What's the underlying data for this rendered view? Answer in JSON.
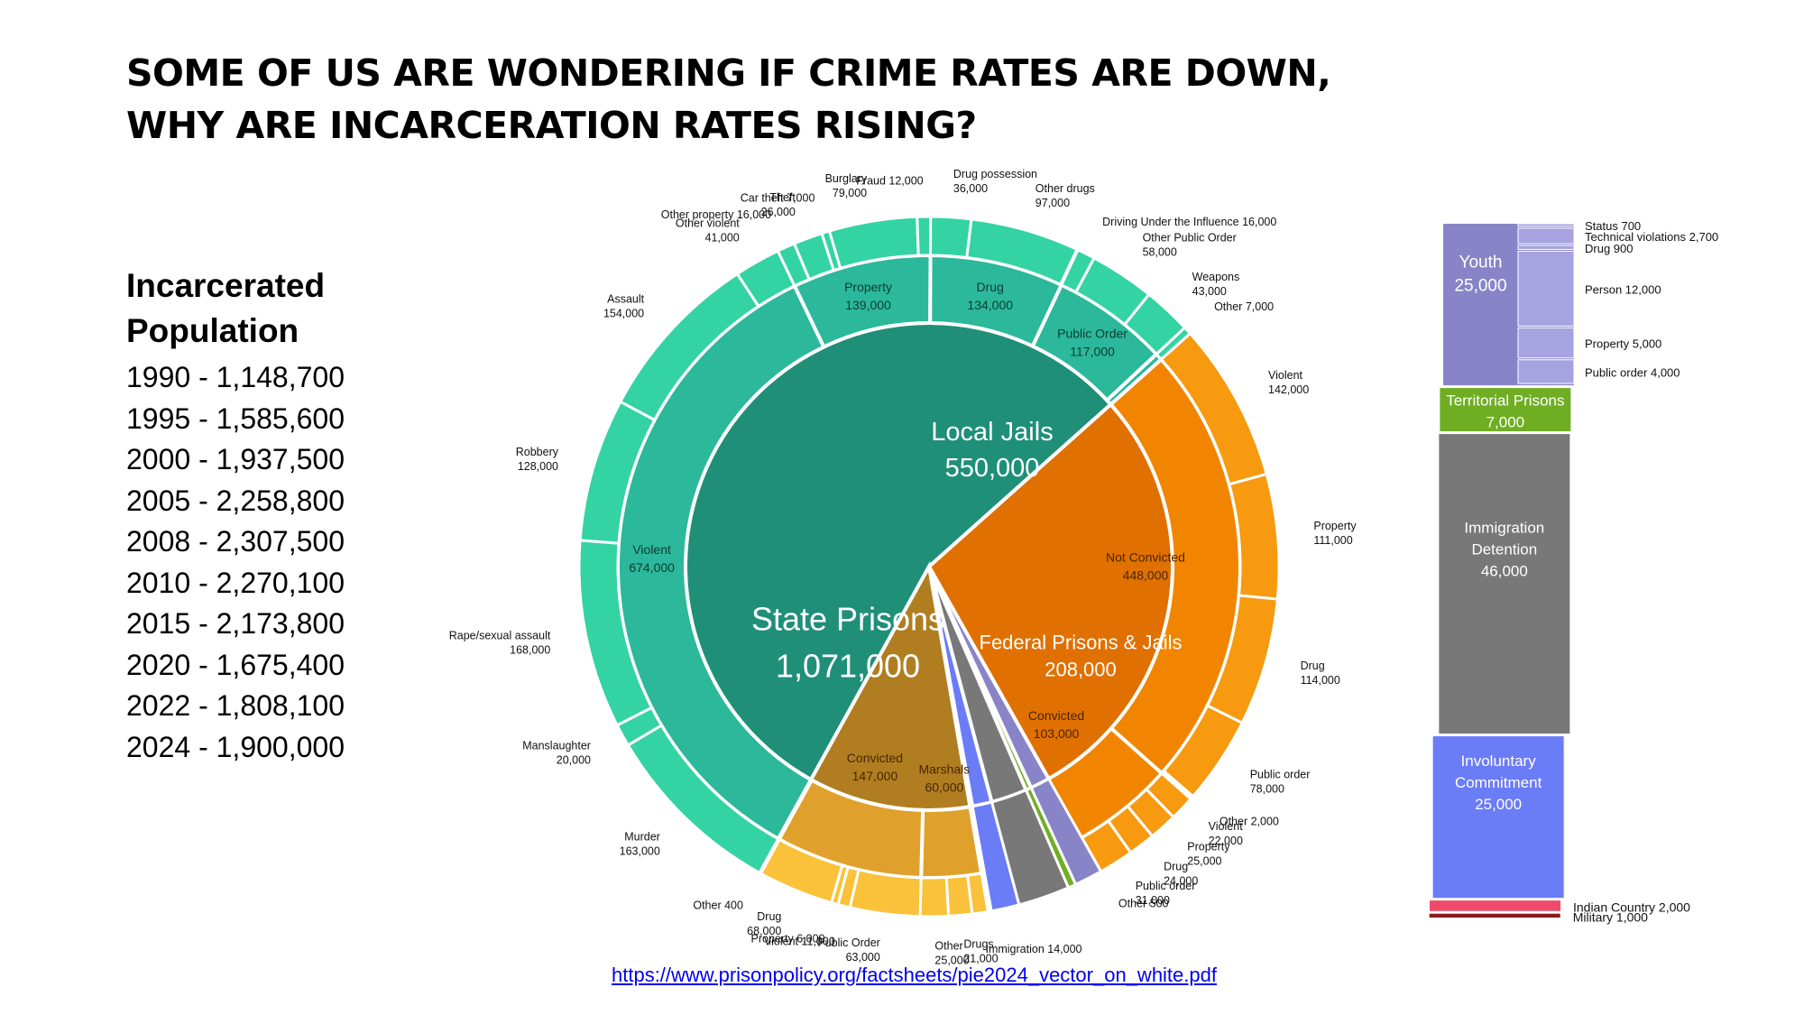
{
  "title": {
    "line1": "SOME OF US ARE WONDERING IF CRIME RATES ARE DOWN,",
    "line2": "WHY ARE INCARCERATION RATES RISING?"
  },
  "population": {
    "heading1": "Incarcerated",
    "heading2": "Population",
    "rows": [
      "1990 - 1,148,700",
      "1995 - 1,585,600",
      "2000 - 1,937,500",
      "2005 - 2,258,800",
      "2008 - 2,307,500",
      "2010 - 2,270,100",
      "2015 - 2,173,800",
      "2020 - 1,675,400",
      "2022 - 1,808,100",
      "2024 - 1,900,000"
    ]
  },
  "source_link": "https://www.prisonpolicy.org/factsheets/pie2024_vector_on_white.pdf",
  "chart_data": {
    "type": "pie",
    "subtype": "sunburst",
    "colors": {
      "state_core": "#1f8f78",
      "state_mid": "#2cb89a",
      "state_outer": "#34d3a3",
      "jail_core": "#e07000",
      "jail_mid": "#f28500",
      "jail_outer": "#f79a10",
      "fed_core": "#b07e21",
      "fed_mid": "#e0a12c",
      "fed_outer": "#f9c23a",
      "youth": "#8984c8",
      "youth_outer": "#a7a2e0",
      "territorial": "#6fae22",
      "immigration": "#787878",
      "involuntary": "#6b7cf7",
      "indian": "#f04a6a",
      "military": "#8b1b20",
      "link": "#0000ee"
    },
    "groups": [
      {
        "name": "State Prisons",
        "value": "1,071,000",
        "color": "state_core",
        "children": [
          {
            "name": "Violent",
            "value": "674,000",
            "children": [
              {
                "name": "Murder",
                "value": "163,000"
              },
              {
                "name": "Manslaughter",
                "value": "20,000"
              },
              {
                "name": "Rape/sexual assault",
                "value": "168,000"
              },
              {
                "name": "Robbery",
                "value": "128,000"
              },
              {
                "name": "Assault",
                "value": "154,000"
              },
              {
                "name": "Other violent",
                "value": "41,000"
              }
            ]
          },
          {
            "name": "Property",
            "value": "139,000",
            "children": [
              {
                "name": "Other property",
                "value": "16,000"
              },
              {
                "name": "Theft",
                "value": "26,000"
              },
              {
                "name": "Car theft",
                "value": "7,000"
              },
              {
                "name": "Burglary",
                "value": "79,000"
              },
              {
                "name": "Fraud",
                "value": "12,000"
              }
            ]
          },
          {
            "name": "Drug",
            "value": "134,000",
            "children": [
              {
                "name": "Drug possession",
                "value": "36,000"
              },
              {
                "name": "Other drugs",
                "value": "97,000"
              }
            ]
          },
          {
            "name": "Public Order",
            "value": "117,000",
            "children": [
              {
                "name": "Driving Under the Influence",
                "value": "16,000"
              },
              {
                "name": "Other Public Order",
                "value": "58,000"
              },
              {
                "name": "Weapons",
                "value": "43,000"
              }
            ]
          },
          {
            "name": "Other",
            "value": "7,000",
            "children": []
          }
        ]
      },
      {
        "name": "Local Jails",
        "value": "550,000",
        "color": "jail_core",
        "children": [
          {
            "name": "Not Convicted",
            "value": "448,000",
            "children": [
              {
                "name": "Violent",
                "value": "142,000"
              },
              {
                "name": "Property",
                "value": "111,000"
              },
              {
                "name": "Drug",
                "value": "114,000"
              },
              {
                "name": "Public order",
                "value": "78,000"
              },
              {
                "name": "Other",
                "value": "2,000"
              }
            ]
          },
          {
            "name": "Convicted",
            "value": "103,000",
            "children": [
              {
                "name": "Violent",
                "value": "22,000"
              },
              {
                "name": "Property",
                "value": "25,000"
              },
              {
                "name": "Drug",
                "value": "24,000"
              },
              {
                "name": "Public order",
                "value": "31,000"
              },
              {
                "name": "Other",
                "value": "500"
              }
            ]
          }
        ]
      },
      {
        "name": "Youth",
        "value": "25,000"
      },
      {
        "name": "Territorial Prisons",
        "value": "7,000"
      },
      {
        "name": "Immigration Detention",
        "value": "46,000"
      },
      {
        "name": "Involuntary Commitment",
        "value": "25,000"
      },
      {
        "name": "Indian Country",
        "value": "2,000"
      },
      {
        "name": "Military",
        "value": "1,000"
      },
      {
        "name": "Federal Prisons & Jails",
        "value": "208,000",
        "color": "fed_core",
        "children": [
          {
            "name": "Marshals",
            "value": "60,000",
            "children": [
              {
                "name": "Immigration",
                "value": "14,000"
              },
              {
                "name": "Drugs",
                "value": "21,000"
              },
              {
                "name": "Other",
                "value": "25,000"
              }
            ]
          },
          {
            "name": "Convicted",
            "value": "147,000",
            "children": [
              {
                "name": "Public Order",
                "value": "63,000"
              },
              {
                "name": "Violent",
                "value": "11,000"
              },
              {
                "name": "Property",
                "value": "6,000"
              },
              {
                "name": "Drug",
                "value": "68,000"
              },
              {
                "name": "Other",
                "value": "400"
              }
            ]
          }
        ]
      }
    ],
    "detail_bar": {
      "segments": [
        {
          "name": "Youth",
          "value": "25,000",
          "children": [
            {
              "name": "Status",
              "value": "700"
            },
            {
              "name": "Technical violations",
              "value": "2,700"
            },
            {
              "name": "Drug",
              "value": "900"
            },
            {
              "name": "Person",
              "value": "12,000"
            },
            {
              "name": "Property",
              "value": "5,000"
            },
            {
              "name": "Public order",
              "value": "4,000"
            }
          ]
        },
        {
          "name": "Territorial Prisons",
          "value": "7,000"
        },
        {
          "name": "Immigration Detention",
          "value": "46,000"
        },
        {
          "name": "Involuntary Commitment",
          "value": "25,000"
        },
        {
          "name": "Indian Country",
          "value": "2,000"
        },
        {
          "name": "Military",
          "value": "1,000"
        }
      ]
    }
  }
}
